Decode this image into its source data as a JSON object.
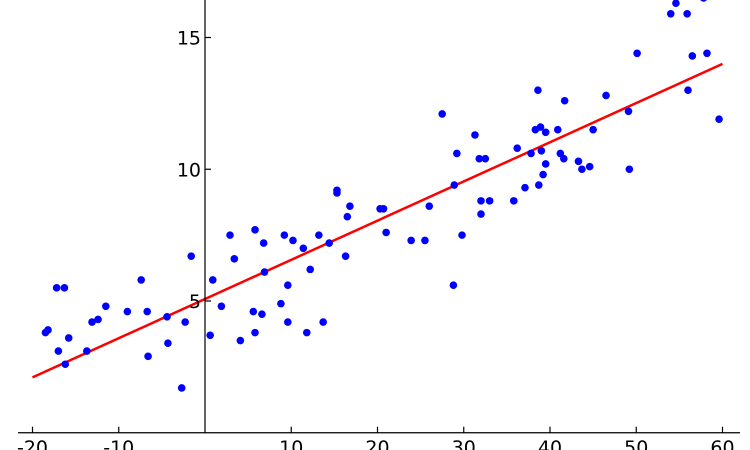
{
  "chart_data": {
    "type": "scatter",
    "title": "",
    "xlabel": "",
    "ylabel": "",
    "xlim": [
      -20,
      60
    ],
    "ylim": [
      0,
      16.5
    ],
    "grid": false,
    "axes_style": "crossing-at-origin",
    "x_ticks": [
      -20,
      -10,
      10,
      20,
      30,
      40,
      50,
      60
    ],
    "x_tick_labels": [
      "-20",
      "-10",
      "10",
      "20",
      "30",
      "40",
      "50",
      "60"
    ],
    "y_ticks": [
      5,
      10,
      15
    ],
    "y_tick_labels": [
      "5",
      "10",
      "15"
    ],
    "points_color": "#0000ff",
    "line_color": "#ff0000",
    "series": [
      {
        "kind": "scatter",
        "points": [
          [
            -18.5,
            3.8
          ],
          [
            -18.2,
            3.9
          ],
          [
            -17.2,
            5.5
          ],
          [
            -16.3,
            5.5
          ],
          [
            -17.0,
            3.1
          ],
          [
            -15.8,
            3.6
          ],
          [
            -16.2,
            2.6
          ],
          [
            -13.7,
            3.1
          ],
          [
            -13.1,
            4.2
          ],
          [
            -12.4,
            4.3
          ],
          [
            -11.5,
            4.8
          ],
          [
            -9.0,
            4.6
          ],
          [
            -7.4,
            5.8
          ],
          [
            -6.7,
            4.6
          ],
          [
            -6.6,
            2.9
          ],
          [
            -4.3,
            3.4
          ],
          [
            -4.4,
            4.4
          ],
          [
            -2.7,
            1.7
          ],
          [
            -2.3,
            4.2
          ],
          [
            -1.6,
            6.7
          ],
          [
            0.6,
            3.7
          ],
          [
            0.9,
            5.8
          ],
          [
            1.9,
            4.8
          ],
          [
            2.9,
            7.5
          ],
          [
            3.4,
            6.6
          ],
          [
            4.1,
            3.5
          ],
          [
            5.6,
            4.6
          ],
          [
            5.8,
            7.7
          ],
          [
            5.8,
            3.8
          ],
          [
            6.8,
            7.2
          ],
          [
            6.6,
            4.5
          ],
          [
            6.9,
            6.1
          ],
          [
            8.8,
            4.9
          ],
          [
            9.2,
            7.5
          ],
          [
            9.6,
            4.2
          ],
          [
            9.6,
            5.6
          ],
          [
            10.2,
            7.3
          ],
          [
            11.4,
            7.0
          ],
          [
            11.8,
            3.8
          ],
          [
            12.2,
            6.2
          ],
          [
            13.2,
            7.5
          ],
          [
            13.7,
            4.2
          ],
          [
            14.4,
            7.2
          ],
          [
            15.3,
            9.2
          ],
          [
            15.3,
            9.1
          ],
          [
            16.3,
            6.7
          ],
          [
            16.5,
            8.2
          ],
          [
            16.8,
            8.6
          ],
          [
            20.3,
            8.5
          ],
          [
            20.7,
            8.5
          ],
          [
            21.0,
            7.6
          ],
          [
            23.9,
            7.3
          ],
          [
            25.5,
            7.3
          ],
          [
            26.0,
            8.6
          ],
          [
            27.5,
            12.1
          ],
          [
            28.8,
            5.6
          ],
          [
            28.9,
            9.4
          ],
          [
            29.2,
            10.6
          ],
          [
            29.8,
            7.5
          ],
          [
            31.3,
            11.3
          ],
          [
            31.8,
            10.4
          ],
          [
            32.0,
            8.8
          ],
          [
            32.0,
            8.3
          ],
          [
            32.5,
            10.4
          ],
          [
            33.0,
            8.8
          ],
          [
            35.8,
            8.8
          ],
          [
            36.2,
            10.8
          ],
          [
            37.1,
            9.3
          ],
          [
            37.8,
            10.6
          ],
          [
            38.3,
            11.5
          ],
          [
            38.6,
            13.0
          ],
          [
            38.7,
            9.4
          ],
          [
            38.9,
            11.6
          ],
          [
            39.0,
            10.7
          ],
          [
            39.2,
            9.8
          ],
          [
            39.5,
            11.4
          ],
          [
            39.5,
            10.2
          ],
          [
            40.9,
            11.5
          ],
          [
            41.2,
            10.6
          ],
          [
            41.6,
            10.4
          ],
          [
            41.7,
            12.6
          ],
          [
            43.3,
            10.3
          ],
          [
            43.7,
            10.0
          ],
          [
            44.6,
            10.1
          ],
          [
            45.0,
            11.5
          ],
          [
            46.5,
            12.8
          ],
          [
            49.1,
            12.2
          ],
          [
            49.2,
            10.0
          ],
          [
            50.1,
            14.4
          ],
          [
            54.0,
            15.9
          ],
          [
            54.6,
            16.3
          ],
          [
            55.9,
            15.9
          ],
          [
            56.0,
            13.0
          ],
          [
            56.5,
            14.3
          ],
          [
            57.8,
            16.5
          ],
          [
            58.2,
            14.4
          ],
          [
            59.6,
            11.9
          ]
        ]
      },
      {
        "kind": "line",
        "points": [
          [
            -20,
            2.1
          ],
          [
            60,
            14.0
          ]
        ]
      }
    ]
  }
}
